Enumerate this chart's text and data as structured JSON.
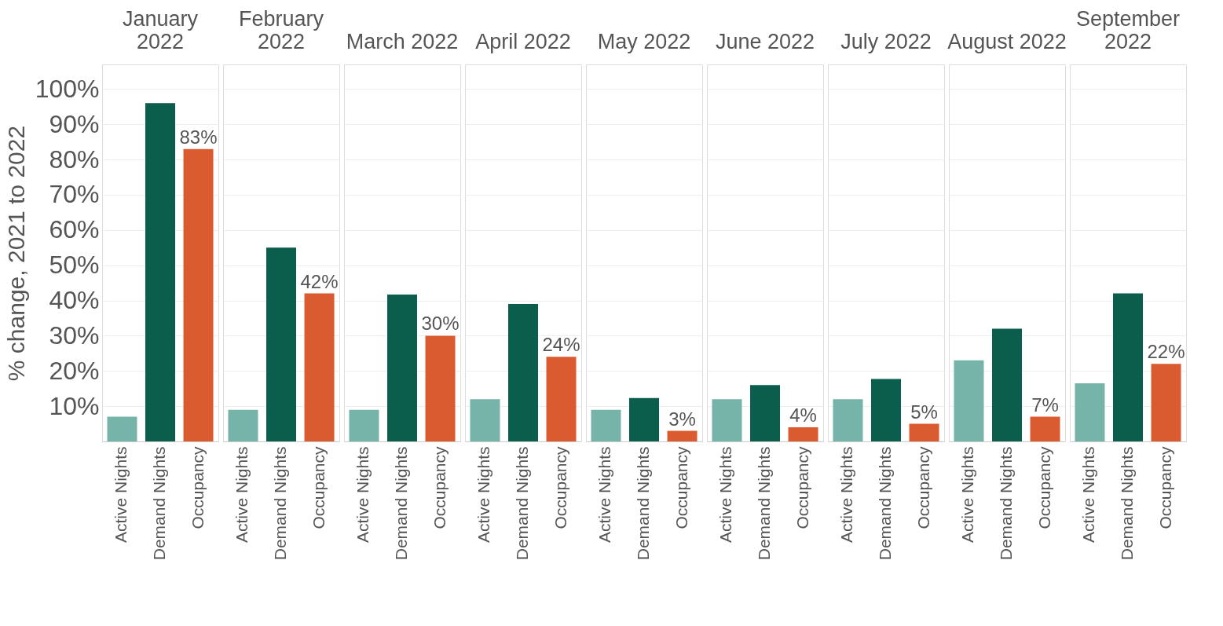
{
  "chart_data": [
    {
      "type": "bar",
      "title": "January 2022",
      "ylabel": "% change, 2021 to 2022",
      "categories": [
        "Active Nights",
        "Demand Nights",
        "Occupancy"
      ],
      "values": [
        7,
        96,
        83
      ],
      "colors": [
        "#76b3a8",
        "#0b5e4c",
        "#d95b2f"
      ],
      "value_labels": [
        null,
        null,
        "83%"
      ],
      "ylim": [
        0,
        107
      ],
      "yticks": [
        {
          "value": 10,
          "label": "10%"
        },
        {
          "value": 20,
          "label": "20%"
        },
        {
          "value": 30,
          "label": "30%"
        },
        {
          "value": 40,
          "label": "40%"
        },
        {
          "value": 50,
          "label": "50%"
        },
        {
          "value": 60,
          "label": "60%"
        },
        {
          "value": 70,
          "label": "70%"
        },
        {
          "value": 80,
          "label": "80%"
        },
        {
          "value": 90,
          "label": "90%"
        },
        {
          "value": 100,
          "label": "100%"
        }
      ],
      "grid": "y"
    },
    {
      "type": "bar",
      "title": "February 2022",
      "categories": [
        "Active Nights",
        "Demand Nights",
        "Occupancy"
      ],
      "values": [
        9,
        55,
        42
      ],
      "colors": [
        "#76b3a8",
        "#0b5e4c",
        "#d95b2f"
      ],
      "value_labels": [
        null,
        null,
        "42%"
      ],
      "ylim": [
        0,
        107
      ],
      "yticks": [
        10,
        20,
        30,
        40,
        50,
        60,
        70,
        80,
        90,
        100
      ],
      "grid": "y",
      "tick_labels": "x"
    },
    {
      "type": "bar",
      "title": "March 2022",
      "categories": [
        "Active Nights",
        "Demand Nights",
        "Occupancy"
      ],
      "values": [
        9,
        41.7,
        30
      ],
      "colors": [
        "#76b3a8",
        "#0b5e4c",
        "#d95b2f"
      ],
      "value_labels": [
        null,
        null,
        "30%"
      ],
      "ylim": [
        0,
        107
      ],
      "yticks": [
        10,
        20,
        30,
        40,
        50,
        60,
        70,
        80,
        90,
        100
      ],
      "grid": "y",
      "tick_labels": "x"
    },
    {
      "type": "bar",
      "title": "April 2022",
      "categories": [
        "Active Nights",
        "Demand Nights",
        "Occupancy"
      ],
      "values": [
        12,
        39,
        24
      ],
      "colors": [
        "#76b3a8",
        "#0b5e4c",
        "#d95b2f"
      ],
      "value_labels": [
        null,
        null,
        "24%"
      ],
      "ylim": [
        0,
        107
      ],
      "yticks": [
        10,
        20,
        30,
        40,
        50,
        60,
        70,
        80,
        90,
        100
      ],
      "grid": "y",
      "tick_labels": "x"
    },
    {
      "type": "bar",
      "title": "May 2022",
      "categories": [
        "Active Nights",
        "Demand Nights",
        "Occupancy"
      ],
      "values": [
        9,
        12.3,
        3
      ],
      "colors": [
        "#76b3a8",
        "#0b5e4c",
        "#d95b2f"
      ],
      "value_labels": [
        null,
        null,
        "3%"
      ],
      "ylim": [
        0,
        107
      ],
      "yticks": [
        10,
        20,
        30,
        40,
        50,
        60,
        70,
        80,
        90,
        100
      ],
      "grid": "y",
      "tick_labels": "x"
    },
    {
      "type": "bar",
      "title": "June 2022",
      "categories": [
        "Active Nights",
        "Demand Nights",
        "Occupancy"
      ],
      "values": [
        12,
        16,
        4
      ],
      "colors": [
        "#76b3a8",
        "#0b5e4c",
        "#d95b2f"
      ],
      "value_labels": [
        null,
        null,
        "4%"
      ],
      "ylim": [
        0,
        107
      ],
      "yticks": [
        10,
        20,
        30,
        40,
        50,
        60,
        70,
        80,
        90,
        100
      ],
      "grid": "y",
      "tick_labels": "x"
    },
    {
      "type": "bar",
      "title": "July 2022",
      "categories": [
        "Active Nights",
        "Demand Nights",
        "Occupancy"
      ],
      "values": [
        12,
        17.7,
        5
      ],
      "colors": [
        "#76b3a8",
        "#0b5e4c",
        "#d95b2f"
      ],
      "value_labels": [
        null,
        null,
        "5%"
      ],
      "ylim": [
        0,
        107
      ],
      "yticks": [
        10,
        20,
        30,
        40,
        50,
        60,
        70,
        80,
        90,
        100
      ],
      "grid": "y",
      "tick_labels": "x"
    },
    {
      "type": "bar",
      "title": "August 2022",
      "categories": [
        "Active Nights",
        "Demand Nights",
        "Occupancy"
      ],
      "values": [
        23,
        32,
        7
      ],
      "colors": [
        "#76b3a8",
        "#0b5e4c",
        "#d95b2f"
      ],
      "value_labels": [
        null,
        null,
        "7%"
      ],
      "ylim": [
        0,
        107
      ],
      "yticks": [
        10,
        20,
        30,
        40,
        50,
        60,
        70,
        80,
        90,
        100
      ],
      "grid": "y",
      "tick_labels": "x"
    },
    {
      "type": "bar",
      "title": "September 2022",
      "categories": [
        "Active Nights",
        "Demand Nights",
        "Occupancy"
      ],
      "values": [
        16.5,
        42,
        22
      ],
      "colors": [
        "#76b3a8",
        "#0b5e4c",
        "#d95b2f"
      ],
      "value_labels": [
        null,
        null,
        "22%"
      ],
      "ylim": [
        0,
        107
      ],
      "yticks": [
        10,
        20,
        30,
        40,
        50,
        60,
        70,
        80,
        90,
        100
      ],
      "grid": "y",
      "tick_labels": "x"
    }
  ]
}
